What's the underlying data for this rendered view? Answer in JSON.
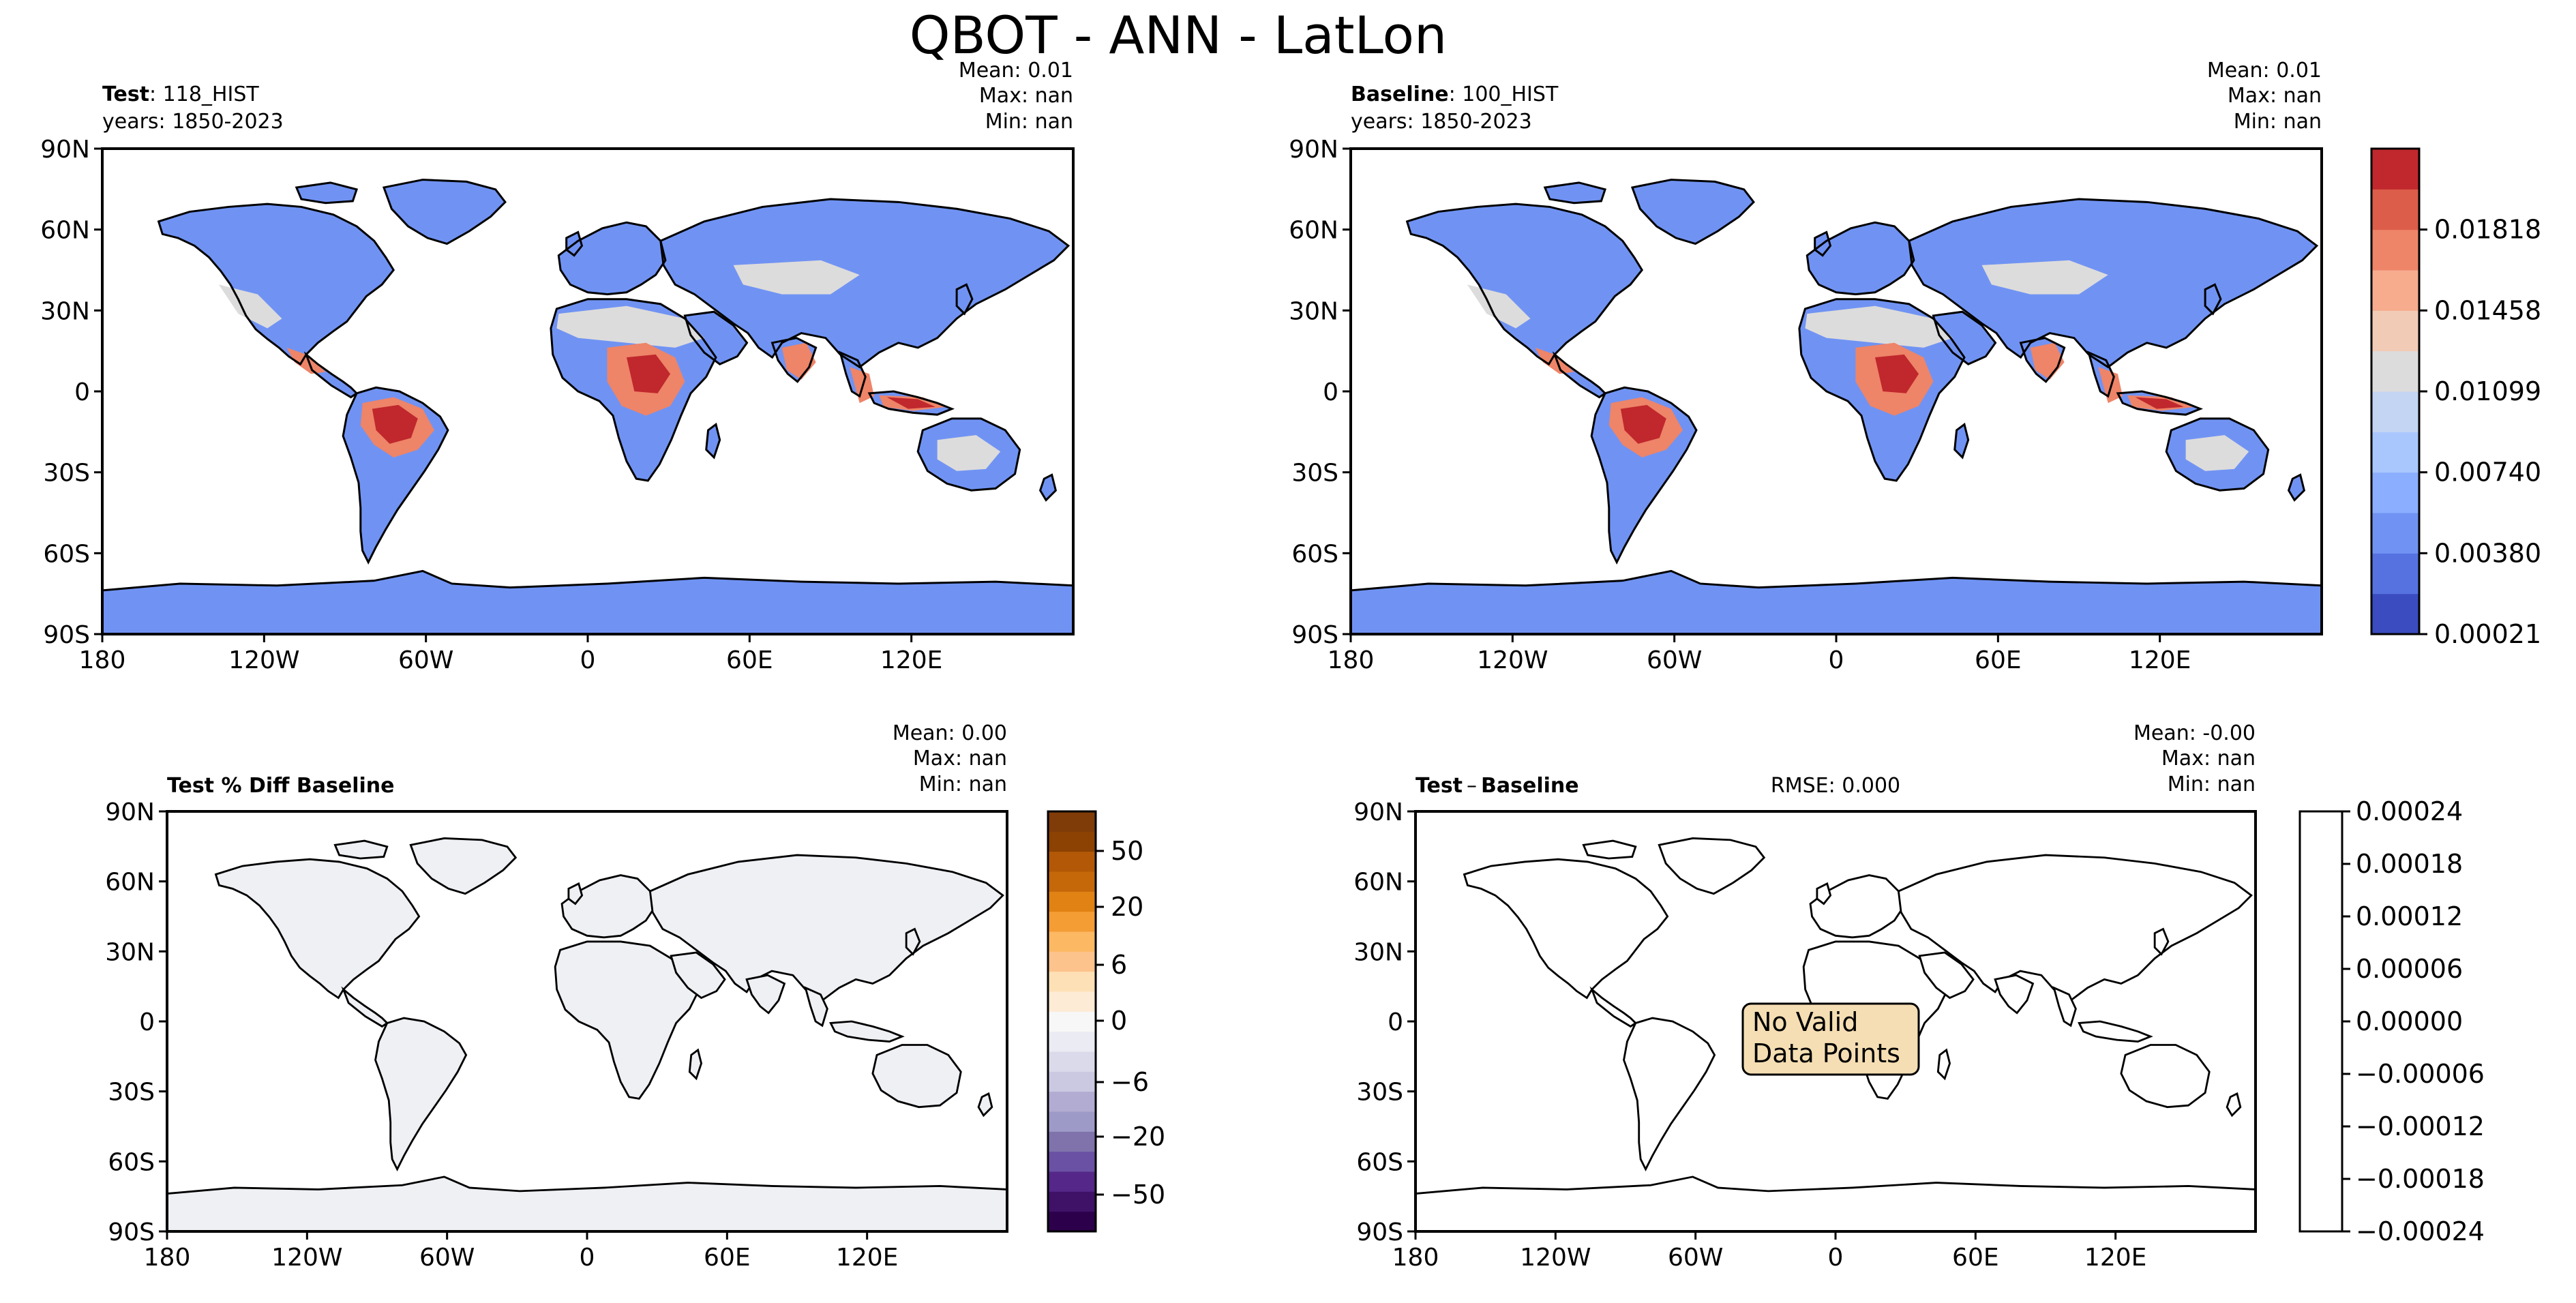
{
  "figure": {
    "title": "QBOT - ANN - LatLon"
  },
  "panels": {
    "test": {
      "label_bold": "Test",
      "label_rest": ": 118_HIST",
      "years": "years: 1850-2023",
      "mean": "Mean:  0.01",
      "max": "Max:   nan",
      "min": "Min:   nan"
    },
    "baseline": {
      "label_bold": "Baseline",
      "label_rest": ": 100_HIST",
      "years": "years: 1850-2023",
      "mean": "Mean:  0.01",
      "max": "Max:   nan",
      "min": "Min:   nan"
    },
    "pctdiff": {
      "label_bold": "Test % Diff Baseline",
      "mean": "Mean:  0.00",
      "max": "Max:   nan",
      "min": "Min:   nan"
    },
    "diff": {
      "label_bold": "Test",
      "label_sep": "–",
      "label_bold2": "Baseline",
      "rmse": "RMSE: 0.000",
      "mean": "Mean: -0.00",
      "max": "Max:   nan",
      "min": "Min:   nan",
      "note_line1": "No Valid",
      "note_line2": "Data Points"
    }
  },
  "chart_data": [
    {
      "type": "heatmap",
      "name": "Test map",
      "x_ticks": [
        "180",
        "120W",
        "60W",
        "0",
        "60E",
        "120E"
      ],
      "y_ticks": [
        "90N",
        "60N",
        "30N",
        "0",
        "30S",
        "60S",
        "90S"
      ],
      "xlim": [
        -180,
        180
      ],
      "ylim": [
        -90,
        90
      ],
      "mean": 0.01
    },
    {
      "type": "heatmap",
      "name": "Baseline map",
      "x_ticks": [
        "180",
        "120W",
        "60W",
        "0",
        "60E",
        "120E"
      ],
      "y_ticks": [
        "90N",
        "60N",
        "30N",
        "0",
        "30S",
        "60S",
        "90S"
      ],
      "xlim": [
        -180,
        180
      ],
      "ylim": [
        -90,
        90
      ],
      "mean": 0.01
    },
    {
      "type": "heatmap",
      "name": "Test % Diff Baseline map",
      "x_ticks": [
        "180",
        "120W",
        "60W",
        "0",
        "60E",
        "120E"
      ],
      "y_ticks": [
        "90N",
        "60N",
        "30N",
        "0",
        "30S",
        "60S",
        "90S"
      ],
      "xlim": [
        -180,
        180
      ],
      "ylim": [
        -90,
        90
      ],
      "mean": 0.0
    },
    {
      "type": "heatmap",
      "name": "Test - Baseline map",
      "x_ticks": [
        "180",
        "120W",
        "60W",
        "0",
        "60E",
        "120E"
      ],
      "y_ticks": [
        "90N",
        "60N",
        "30N",
        "0",
        "30S",
        "60S",
        "90S"
      ],
      "xlim": [
        -180,
        180
      ],
      "ylim": [
        -90,
        90
      ],
      "mean": -0.0,
      "rmse": 0.0
    }
  ],
  "colorbars": {
    "main": {
      "colors": [
        "#3b4cc0",
        "#5672e0",
        "#7093f3",
        "#8caefe",
        "#aac7fd",
        "#c4d5f3",
        "#dddcdc",
        "#f2cbb7",
        "#f7ac8e",
        "#ee8468",
        "#dc5d4a",
        "#c0282d"
      ],
      "tick_labels": [
        "0.00021",
        "0.00380",
        "0.00740",
        "0.01099",
        "0.01458",
        "0.01818"
      ],
      "range": [
        0.00021,
        0.0204
      ]
    },
    "pctdiff": {
      "colors": [
        "#2d004b",
        "#3f1167",
        "#542788",
        "#6a51a3",
        "#8073ac",
        "#9e9ac8",
        "#b2abd2",
        "#cbc9e2",
        "#dadaeb",
        "#ebebf3",
        "#f7f7f7",
        "#fdebd5",
        "#fee0b6",
        "#fdc38d",
        "#fdb863",
        "#f49d35",
        "#e08214",
        "#c5680a",
        "#b35806",
        "#8b4203",
        "#7f3b08"
      ],
      "tick_labels": [
        "−50",
        "−20",
        "−6",
        "0",
        "6",
        "20",
        "50"
      ]
    },
    "diff": {
      "tick_labels": [
        "−0.00024",
        "−0.00018",
        "−0.00012",
        "−0.00006",
        "0.00000",
        "0.00006",
        "0.00012",
        "0.00018",
        "0.00024"
      ],
      "range": [
        -0.00024,
        0.00024
      ]
    }
  },
  "colors": {
    "land_empty": "#eef0f4",
    "note_bg": "#f5deb3"
  }
}
